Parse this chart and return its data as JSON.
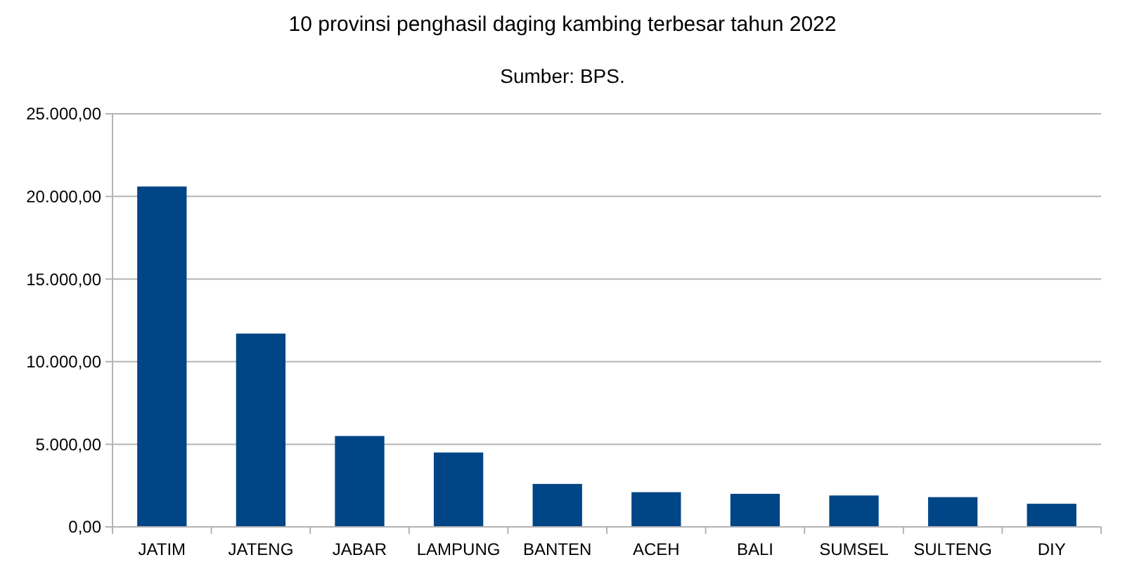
{
  "chart_data": {
    "type": "bar",
    "title": "10 provinsi penghasil daging kambing terbesar tahun 2022",
    "subtitle": "Sumber: BPS.",
    "categories": [
      "JATIM",
      "JATENG",
      "JABAR",
      "LAMPUNG",
      "BANTEN",
      "ACEH",
      "BALI",
      "SUMSEL",
      "SULTENG",
      "DIY"
    ],
    "values": [
      20600,
      11700,
      5500,
      4500,
      2600,
      2100,
      2000,
      1900,
      1800,
      1400
    ],
    "color": "#004586",
    "ylim": [
      0,
      25000
    ],
    "yticks": [
      {
        "value": 0,
        "label": "0,00"
      },
      {
        "value": 5000,
        "label": "5.000,00"
      },
      {
        "value": 10000,
        "label": "10.000,00"
      },
      {
        "value": 15000,
        "label": "15.000,00"
      },
      {
        "value": 20000,
        "label": "20.000,00"
      },
      {
        "value": 25000,
        "label": "25.000,00"
      }
    ],
    "grid": "y"
  }
}
